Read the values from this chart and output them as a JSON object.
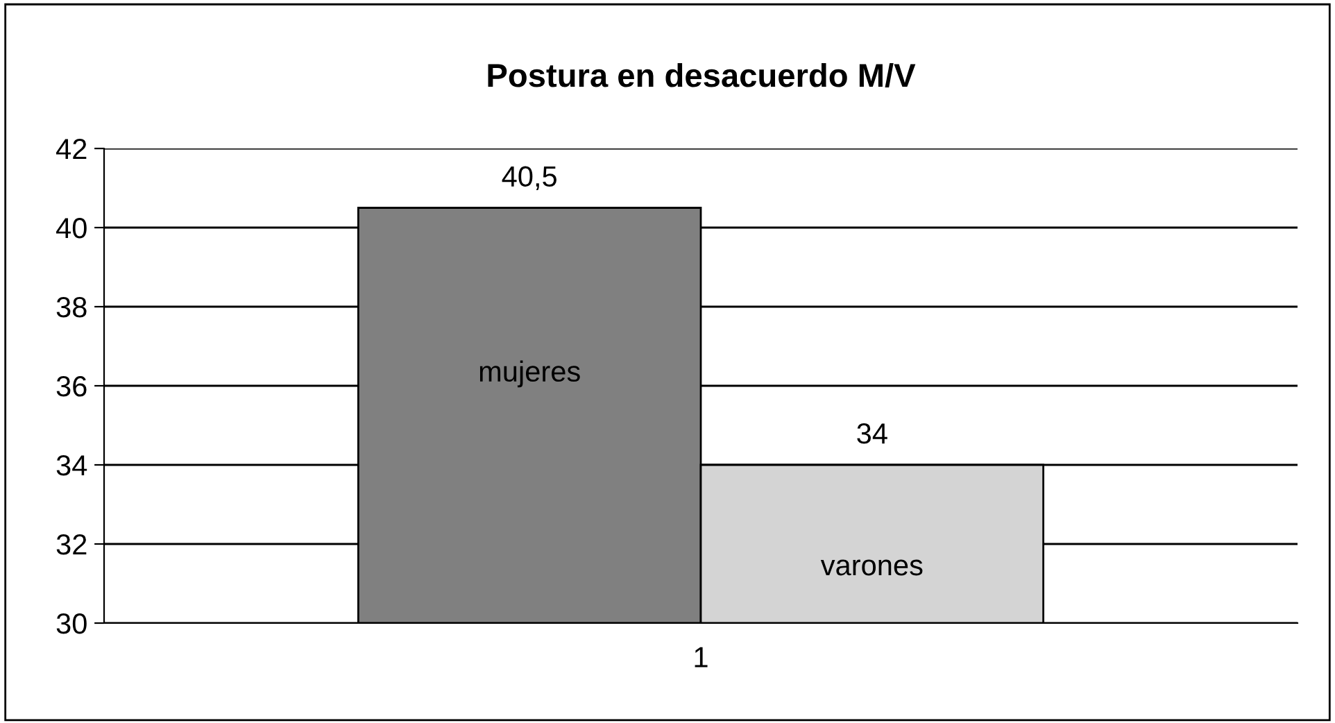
{
  "chart_data": {
    "type": "bar",
    "title": "Postura en desacuerdo M/V",
    "categories": [
      "1"
    ],
    "series": [
      {
        "name": "mujeres",
        "color": "#808080",
        "values": [
          40.5
        ],
        "value_labels": [
          "40,5"
        ]
      },
      {
        "name": "varones",
        "color": "#d4d4d4",
        "values": [
          34
        ],
        "value_labels": [
          "34"
        ]
      }
    ],
    "ylim": [
      30,
      42
    ],
    "yticks": [
      30,
      32,
      34,
      36,
      38,
      40,
      42
    ],
    "grid": "y",
    "legend": false
  }
}
